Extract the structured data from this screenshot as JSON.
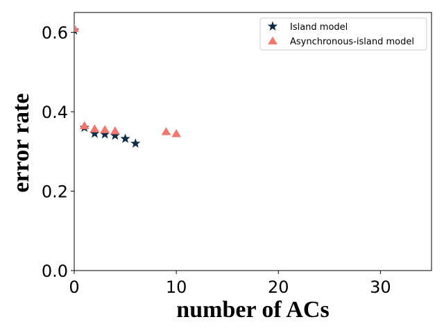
{
  "chart_data": {
    "type": "scatter",
    "xlabel": "number of ACs",
    "ylabel": "error rate",
    "xlim": [
      0,
      35
    ],
    "ylim": [
      0.0,
      0.65
    ],
    "xticks": [
      0,
      10,
      20,
      30
    ],
    "yticks": [
      0.0,
      0.2,
      0.4,
      0.6
    ],
    "xtick_labels": [
      "0",
      "10",
      "20",
      "30"
    ],
    "ytick_labels": [
      "0.0",
      "0.2",
      "0.4",
      "0.6"
    ],
    "grid": false,
    "legend_position": "top-right",
    "series": [
      {
        "name": "Island model",
        "marker": "star",
        "color": "#0d2c47",
        "x": [
          0,
          1,
          2,
          3,
          4,
          5,
          6
        ],
        "y": [
          0.605,
          0.36,
          0.345,
          0.343,
          0.34,
          0.332,
          0.32
        ]
      },
      {
        "name": "Asynchronous-island model",
        "marker": "triangle",
        "color": "#f4766c",
        "x": [
          0,
          1,
          2,
          3,
          4,
          9,
          10
        ],
        "y": [
          0.61,
          0.365,
          0.357,
          0.355,
          0.352,
          0.35,
          0.345
        ]
      }
    ]
  }
}
